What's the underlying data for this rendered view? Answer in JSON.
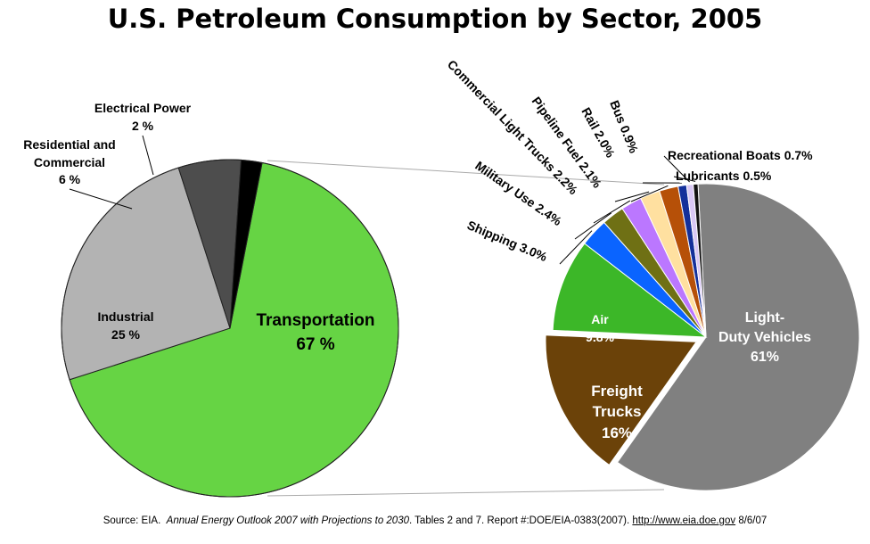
{
  "title": "U.S. Petroleum Consumption by Sector, 2005",
  "source": {
    "prefix": "Source: EIA.",
    "report_title": "Annual Energy Outlook 2007 with Projections to 2030",
    "middle": ". Tables 2 and 7. Report #:DOE/EIA-0383(2007).",
    "url": "http://www.eia.doe.gov",
    "date": "8/6/07"
  },
  "chart_data": [
    {
      "type": "pie",
      "title": "U.S. Petroleum Consumption by Sector, 2005",
      "slices": [
        {
          "label": "Transportation",
          "value_label": "67 %",
          "value": 67,
          "color": "#66d444"
        },
        {
          "label": "Industrial",
          "value_label": "25 %",
          "value": 25,
          "color": "#b3b3b3"
        },
        {
          "label": "Residential and Commercial",
          "value_label": "6 %",
          "value": 6,
          "color": "#4d4d4d"
        },
        {
          "label": "Electrical Power",
          "value_label": "2 %",
          "value": 2,
          "color": "#000000"
        }
      ]
    },
    {
      "type": "pie",
      "title": "",
      "slices": [
        {
          "label": "Light-Duty Vehicles",
          "value_label": "61%",
          "value": 61,
          "color": "#808080"
        },
        {
          "label": "Freight Trucks",
          "value_label": "16%",
          "value": 16,
          "color": "#6b4209"
        },
        {
          "label": "Air",
          "value_label": "9.8%",
          "value": 9.8,
          "color": "#3cb728"
        },
        {
          "label": "Shipping",
          "value_label": "3.0%",
          "value": 3.0,
          "color": "#0a64ff"
        },
        {
          "label": "Military Use",
          "value_label": "2.4%",
          "value": 2.4,
          "color": "#6f7014"
        },
        {
          "label": "Commercial Light Trucks",
          "value_label": "2.2%",
          "value": 2.2,
          "color": "#bb77ff"
        },
        {
          "label": "Pipeline Fuel",
          "value_label": "2.1%",
          "value": 2.1,
          "color": "#ffe0a0"
        },
        {
          "label": "Rail",
          "value_label": "2.0%",
          "value": 2.0,
          "color": "#b65008"
        },
        {
          "label": "Bus",
          "value_label": "0.9%",
          "value": 0.9,
          "color": "#14309a"
        },
        {
          "label": "Recreational Boats",
          "value_label": "0.7%",
          "value": 0.7,
          "color": "#d9c8f5"
        },
        {
          "label": "Lubricants",
          "value_label": "0.5%",
          "value": 0.5,
          "color": "#111111"
        }
      ]
    }
  ]
}
